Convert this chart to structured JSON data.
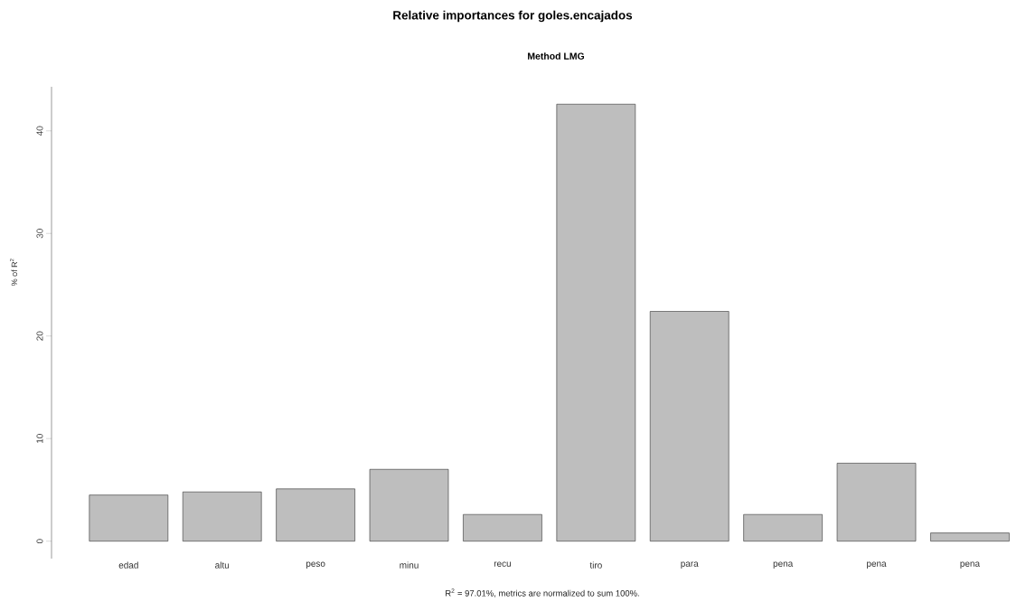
{
  "chart_data": {
    "type": "bar",
    "title": "Relative importances for goles.encajados",
    "subtitle": "Method LMG",
    "ylabel": "% of R$^{2}$",
    "annotations": [
      "R$^{2}$ = 97.01%, metrics are normalized to sum 100%."
    ],
    "categories": [
      "edad",
      "altu",
      "peso",
      "minu",
      "recu",
      "tiro",
      "para",
      "pena",
      "pena",
      "pena"
    ],
    "values": [
      4.5,
      4.8,
      5.1,
      7.0,
      2.6,
      42.6,
      22.4,
      2.6,
      7.6,
      0.8
    ],
    "color": "#bebebe",
    "ylim": [
      -1.7,
      44.3
    ],
    "yticks": [
      0,
      10,
      20,
      30,
      40
    ]
  }
}
